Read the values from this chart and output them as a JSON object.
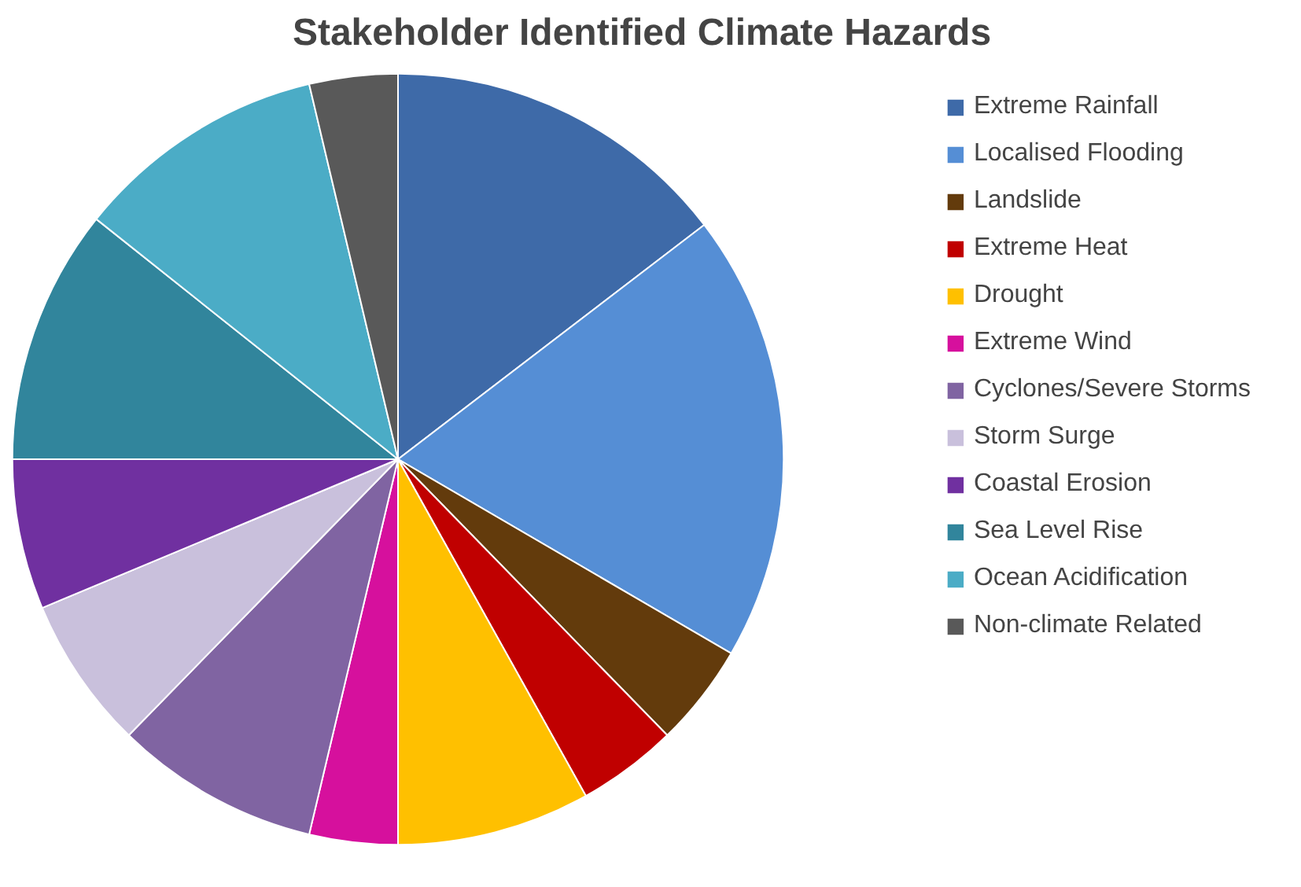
{
  "chart_data": {
    "type": "pie",
    "title": "Stakeholder Identified Climate Hazards",
    "categories": [
      "Extreme Rainfall",
      "Localised Flooding",
      "Landslide",
      "Extreme Heat",
      "Drought",
      "Extreme Wind",
      "Cyclones/Severe Storms",
      "Storm Surge",
      "Coastal Erosion",
      "Sea Level Rise",
      "Ocean Acidification",
      "Non-climate Related"
    ],
    "values": [
      14.6,
      18.8,
      4.3,
      4.2,
      8.1,
      3.7,
      8.6,
      6.4,
      6.3,
      10.7,
      10.6,
      3.7
    ],
    "colors": [
      "#3e6aa8",
      "#558ed5",
      "#633b0c",
      "#c00000",
      "#ffc000",
      "#d6109d",
      "#8064a2",
      "#c9c0dc",
      "#7030a0",
      "#31859c",
      "#4bacc6",
      "#595959"
    ],
    "legend": "right"
  }
}
